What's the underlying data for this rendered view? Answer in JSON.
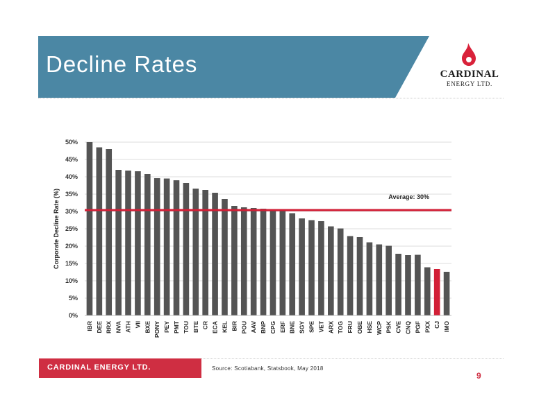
{
  "slide": {
    "title": "Decline Rates",
    "footer_company": "CARDINAL ENERGY LTD.",
    "source": "Source: Scotiabank, Statsbook, May 2018",
    "page_number": "9"
  },
  "logo": {
    "name": "CARDINAL",
    "subtitle": "ENERGY LTD.",
    "icon": "flame-icon"
  },
  "colors": {
    "banner": "#4b87a4",
    "bar": "#545454",
    "highlight": "#d21f36",
    "average_line": "#d21f36",
    "footer": "#cf2e42"
  },
  "chart_data": {
    "type": "bar",
    "title": "",
    "xlabel": "",
    "ylabel": "Corporate Decline Rate (%)",
    "ylim": [
      0,
      50
    ],
    "yticks": [
      "0%",
      "5%",
      "10%",
      "15%",
      "20%",
      "25%",
      "30%",
      "35%",
      "40%",
      "45%",
      "50%"
    ],
    "y_grid": true,
    "categories": [
      "IBR",
      "DEE",
      "RRX",
      "NVA",
      "ATH",
      "VII",
      "BXE",
      "PONY",
      "PEY",
      "PMT",
      "TOU",
      "BTE",
      "CR",
      "ECA",
      "KEL",
      "BIR",
      "POU",
      "AAV",
      "BNP",
      "CPG",
      "ERF",
      "BNE",
      "SGY",
      "SPE",
      "VET",
      "ARX",
      "TOG",
      "FRU",
      "OBE",
      "HSE",
      "WCP",
      "PSK",
      "CVE",
      "CNQ",
      "PGF",
      "PXX",
      "CJ",
      "IMO"
    ],
    "values": [
      50,
      48.5,
      48,
      42,
      41.8,
      41.6,
      40.8,
      39.6,
      39.5,
      39,
      38.2,
      36.6,
      36.2,
      35.4,
      33.6,
      31.6,
      31.2,
      31,
      30.8,
      30.5,
      30.2,
      29.5,
      28,
      27.5,
      27.2,
      25.7,
      25.1,
      22.9,
      22.6,
      21.1,
      20.5,
      20.1,
      17.8,
      17.4,
      17.5,
      13.9,
      13.4,
      12.6
    ],
    "highlighted_category": "CJ",
    "average": {
      "value": 30.4,
      "label": "Average: 30%"
    }
  }
}
